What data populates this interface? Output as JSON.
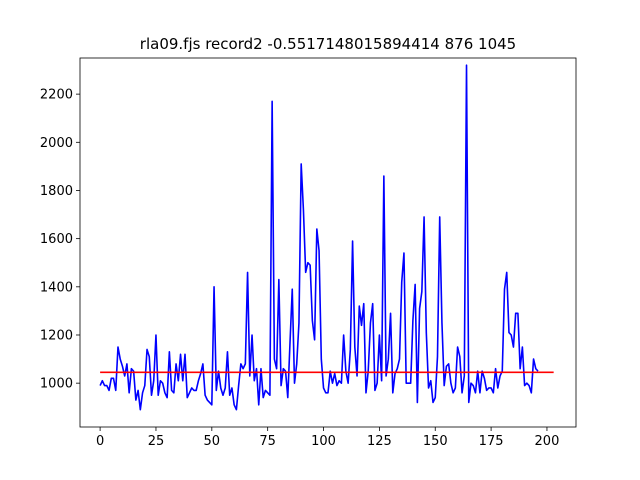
{
  "chart_data": {
    "type": "line",
    "title": "rla09.fjs record2 -0.5517148015894414 876 1045",
    "xlabel": "",
    "ylabel": "",
    "xlim": [
      -9,
      213
    ],
    "ylim": [
      818,
      2350
    ],
    "x_ticks": [
      0,
      25,
      50,
      75,
      100,
      125,
      150,
      175,
      200
    ],
    "y_ticks": [
      1000,
      1200,
      1400,
      1600,
      1800,
      2000,
      2200
    ],
    "grid": false,
    "series": [
      {
        "color": "#0000ff",
        "values": [
          990,
          1010,
          990,
          990,
          970,
          1020,
          1020,
          970,
          1150,
          1100,
          1070,
          1030,
          1080,
          960,
          1060,
          1050,
          930,
          970,
          890,
          960,
          990,
          1140,
          1110,
          950,
          1010,
          1200,
          950,
          1010,
          1000,
          960,
          940,
          1130,
          970,
          960,
          1080,
          1010,
          1120,
          1010,
          1120,
          940,
          960,
          980,
          970,
          970,
          1010,
          1040,
          1080,
          950,
          930,
          920,
          910,
          1400,
          970,
          1050,
          980,
          950,
          980,
          1130,
          950,
          980,
          910,
          890,
          990,
          1080,
          1060,
          1080,
          1460,
          1030,
          1200,
          1010,
          1060,
          910,
          1060,
          940,
          970,
          960,
          950,
          2170,
          1100,
          1060,
          1430,
          990,
          1060,
          1050,
          940,
          1170,
          1390,
          1000,
          1080,
          1250,
          1910,
          1720,
          1460,
          1500,
          1490,
          1260,
          1180,
          1640,
          1550,
          1100,
          980,
          960,
          960,
          1050,
          1000,
          1040,
          990,
          1010,
          1000,
          1200,
          1050,
          1000,
          1140,
          1590,
          1150,
          1030,
          1320,
          1240,
          1330,
          960,
          1050,
          1250,
          1330,
          970,
          1000,
          1200,
          1010,
          1860,
          1030,
          1100,
          1290,
          960,
          1040,
          1060,
          1100,
          1420,
          1540,
          1000,
          1000,
          1000,
          1260,
          1410,
          920,
          1310,
          1380,
          1690,
          1210,
          980,
          1010,
          920,
          940,
          1110,
          1690,
          1250,
          990,
          1070,
          1080,
          1000,
          960,
          980,
          1150,
          1110,
          960,
          1030,
          2320,
          920,
          1000,
          990,
          960,
          1050,
          960,
          1050,
          1020,
          970,
          980,
          980,
          960,
          1060,
          980,
          1030,
          1050,
          1390,
          1460,
          1210,
          1200,
          1150,
          1290,
          1290,
          1060,
          1150,
          990,
          1000,
          990,
          960,
          1100,
          1060,
          1050
        ]
      },
      {
        "color": "#ff0000",
        "values": [
          1045,
          1045
        ],
        "x": [
          0,
          203
        ]
      }
    ]
  }
}
